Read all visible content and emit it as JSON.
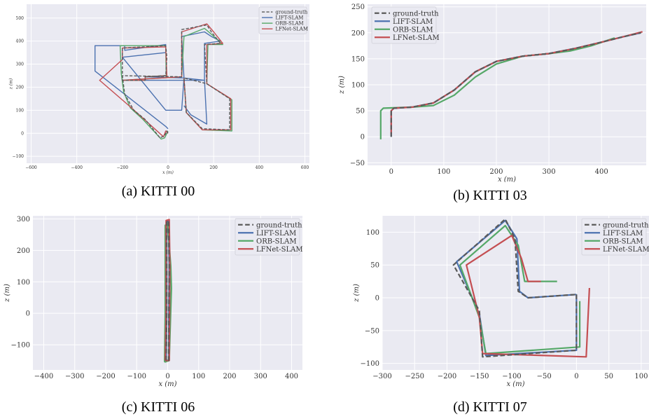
{
  "figure": {
    "captions": [
      "(a) KITTI 00",
      "(b) KITTI 03",
      "(c) KITTI 06",
      "(d) KITTI 07"
    ]
  },
  "colors": {
    "plot_bg": "#eaeaf2",
    "grid": "#ffffff",
    "ground-truth": "#5a5a5a",
    "LIFT-SLAM": "#4c72b0",
    "ORB-SLAM": "#55a868",
    "LFNet-SLAM": "#c44e52"
  },
  "chart_data": [
    {
      "type": "line",
      "caption": "(a) KITTI 00",
      "xlabel": "x (m)",
      "ylabel": "z (m)",
      "xlim": [
        -620,
        620
      ],
      "ylim": [
        -130,
        560
      ],
      "xticks": [
        -600,
        -400,
        -200,
        0,
        200,
        400,
        600
      ],
      "yticks": [
        -100,
        0,
        100,
        200,
        300,
        400,
        500
      ],
      "grid": true,
      "legend": "top-right",
      "series": [
        {
          "name": "ground-truth",
          "points": [
            [
              0,
              0
            ],
            [
              -5,
              10
            ],
            [
              -15,
              -10
            ],
            [
              -35,
              -20
            ],
            [
              -100,
              60
            ],
            [
              -150,
              100
            ],
            [
              -190,
              170
            ],
            [
              -200,
              250
            ],
            [
              -200,
              370
            ],
            [
              -10,
              380
            ],
            [
              -5,
              330
            ],
            [
              -10,
              250
            ],
            [
              -100,
              245
            ],
            [
              -100,
              230
            ],
            [
              -200,
              230
            ],
            [
              -200,
              250
            ],
            [
              60,
              245
            ],
            [
              60,
              450
            ],
            [
              170,
              470
            ],
            [
              190,
              440
            ],
            [
              230,
              390
            ],
            [
              160,
              385
            ],
            [
              170,
              215
            ],
            [
              270,
              150
            ],
            [
              270,
              15
            ],
            [
              150,
              20
            ],
            [
              80,
              90
            ],
            [
              70,
              240
            ],
            [
              170,
              215
            ]
          ]
        },
        {
          "name": "LIFT-SLAM",
          "points": [
            [
              0,
              20
            ],
            [
              -10,
              30
            ],
            [
              -320,
              270
            ],
            [
              -320,
              380
            ],
            [
              -190,
              380
            ],
            [
              -190,
              360
            ],
            [
              -10,
              385
            ],
            [
              -10,
              350
            ],
            [
              -200,
              330
            ],
            [
              -10,
              100
            ],
            [
              60,
              100
            ],
            [
              70,
              240
            ],
            [
              60,
              420
            ],
            [
              160,
              440
            ],
            [
              190,
              420
            ],
            [
              230,
              400
            ],
            [
              160,
              390
            ],
            [
              160,
              230
            ],
            [
              70,
              240
            ],
            [
              -100,
              245
            ],
            [
              -100,
              230
            ],
            [
              160,
              230
            ],
            [
              170,
              40
            ],
            [
              100,
              80
            ],
            [
              70,
              120
            ]
          ]
        },
        {
          "name": "ORB-SLAM",
          "points": [
            [
              0,
              10
            ],
            [
              -15,
              -20
            ],
            [
              -30,
              -25
            ],
            [
              -110,
              60
            ],
            [
              -165,
              110
            ],
            [
              -195,
              180
            ],
            [
              -205,
              260
            ],
            [
              -210,
              380
            ],
            [
              -10,
              380
            ],
            [
              -8,
              250
            ],
            [
              -100,
              245
            ],
            [
              -100,
              230
            ],
            [
              -200,
              230
            ],
            [
              60,
              245
            ],
            [
              70,
              420
            ],
            [
              160,
              455
            ],
            [
              190,
              430
            ],
            [
              240,
              385
            ],
            [
              175,
              385
            ],
            [
              170,
              215
            ],
            [
              280,
              145
            ],
            [
              280,
              10
            ],
            [
              150,
              15
            ],
            [
              80,
              90
            ],
            [
              70,
              240
            ]
          ]
        },
        {
          "name": "LFNet-SLAM",
          "points": [
            [
              0,
              0
            ],
            [
              -10,
              10
            ],
            [
              -20,
              -15
            ],
            [
              -160,
              110
            ],
            [
              -300,
              230
            ],
            [
              -200,
              320
            ],
            [
              -200,
              370
            ],
            [
              -10,
              375
            ],
            [
              -5,
              250
            ],
            [
              -100,
              245
            ],
            [
              -100,
              230
            ],
            [
              -200,
              230
            ],
            [
              60,
              245
            ],
            [
              60,
              440
            ],
            [
              170,
              475
            ],
            [
              200,
              440
            ],
            [
              240,
              390
            ],
            [
              170,
              385
            ],
            [
              170,
              215
            ],
            [
              275,
              150
            ],
            [
              275,
              15
            ],
            [
              150,
              15
            ],
            [
              80,
              90
            ],
            [
              70,
              240
            ]
          ]
        }
      ]
    },
    {
      "type": "line",
      "caption": "(b) KITTI 03",
      "xlabel": "x (m)",
      "ylabel": "z (m)",
      "xlim": [
        -45,
        485
      ],
      "ylim": [
        -55,
        255
      ],
      "xticks": [
        0,
        100,
        200,
        300,
        400
      ],
      "yticks": [
        -50,
        0,
        50,
        100,
        150,
        200,
        250
      ],
      "grid": true,
      "legend": "top-left",
      "series": [
        {
          "name": "ground-truth",
          "points": [
            [
              0,
              0
            ],
            [
              0,
              50
            ],
            [
              5,
              55
            ],
            [
              40,
              57
            ],
            [
              80,
              65
            ],
            [
              120,
              90
            ],
            [
              160,
              125
            ],
            [
              200,
              145
            ],
            [
              250,
              155
            ],
            [
              300,
              160
            ],
            [
              350,
              170
            ],
            [
              400,
              182
            ],
            [
              440,
              192
            ],
            [
              475,
              200
            ]
          ]
        },
        {
          "name": "LIFT-SLAM",
          "points": [
            [
              0,
              0
            ],
            [
              0,
              50
            ],
            [
              5,
              55
            ],
            [
              40,
              57
            ],
            [
              80,
              65
            ],
            [
              120,
              90
            ],
            [
              160,
              125
            ],
            [
              200,
              145
            ],
            [
              250,
              155
            ],
            [
              300,
              160
            ],
            [
              350,
              170
            ],
            [
              400,
              182
            ],
            [
              440,
              192
            ],
            [
              475,
              200
            ]
          ]
        },
        {
          "name": "ORB-SLAM",
          "points": [
            [
              -20,
              -5
            ],
            [
              -20,
              50
            ],
            [
              -15,
              55
            ],
            [
              40,
              57
            ],
            [
              80,
              60
            ],
            [
              120,
              80
            ],
            [
              160,
              115
            ],
            [
              200,
              140
            ],
            [
              250,
              155
            ],
            [
              300,
              160
            ],
            [
              340,
              165
            ],
            [
              380,
              175
            ],
            [
              425,
              190
            ]
          ]
        },
        {
          "name": "LFNet-SLAM",
          "points": [
            [
              0,
              5
            ],
            [
              0,
              50
            ],
            [
              5,
              55
            ],
            [
              40,
              57
            ],
            [
              80,
              65
            ],
            [
              120,
              90
            ],
            [
              160,
              125
            ],
            [
              200,
              145
            ],
            [
              250,
              155
            ],
            [
              300,
              160
            ],
            [
              350,
              170
            ],
            [
              400,
              182
            ],
            [
              440,
              192
            ],
            [
              478,
              202
            ]
          ]
        }
      ]
    },
    {
      "type": "line",
      "caption": "(c) KITTI 06",
      "xlabel": "x (m)",
      "ylabel": "z (m)",
      "xlim": [
        -435,
        435
      ],
      "ylim": [
        -180,
        310
      ],
      "xticks": [
        -400,
        -300,
        -200,
        -100,
        0,
        100,
        200,
        300,
        400
      ],
      "yticks": [
        -100,
        0,
        100,
        200,
        300
      ],
      "grid": true,
      "legend": "top-right",
      "series": [
        {
          "name": "ground-truth",
          "points": [
            [
              -5,
              -150
            ],
            [
              -3,
              0
            ],
            [
              -3,
              290
            ],
            [
              3,
              295
            ],
            [
              5,
              150
            ],
            [
              3,
              -150
            ],
            [
              -5,
              -150
            ]
          ]
        },
        {
          "name": "LIFT-SLAM",
          "points": [
            [
              -5,
              -150
            ],
            [
              -3,
              0
            ],
            [
              -3,
              290
            ],
            [
              3,
              295
            ],
            [
              5,
              150
            ],
            [
              3,
              -150
            ],
            [
              -5,
              -150
            ]
          ]
        },
        {
          "name": "ORB-SLAM",
          "points": [
            [
              -10,
              -155
            ],
            [
              -8,
              0
            ],
            [
              -8,
              280
            ],
            [
              0,
              285
            ],
            [
              10,
              150
            ],
            [
              12,
              80
            ],
            [
              5,
              -150
            ],
            [
              -10,
              -155
            ]
          ]
        },
        {
          "name": "LFNet-SLAM",
          "points": [
            [
              -8,
              -150
            ],
            [
              -5,
              0
            ],
            [
              -5,
              295
            ],
            [
              5,
              298
            ],
            [
              7,
              150
            ],
            [
              5,
              -150
            ],
            [
              -8,
              -150
            ]
          ]
        }
      ]
    },
    {
      "type": "line",
      "caption": "(d) KITTI 07",
      "xlabel": "x (m)",
      "ylabel": "z (m)",
      "xlim": [
        -300,
        112
      ],
      "ylim": [
        -110,
        125
      ],
      "xticks": [
        -300,
        -250,
        -200,
        -150,
        -100,
        -50,
        0,
        50,
        100
      ],
      "yticks": [
        -100,
        -50,
        0,
        50,
        100
      ],
      "grid": true,
      "legend": "top-right",
      "series": [
        {
          "name": "ground-truth",
          "points": [
            [
              0,
              5
            ],
            [
              0,
              -80
            ],
            [
              -145,
              -90
            ],
            [
              -150,
              -20
            ],
            [
              -190,
              50
            ],
            [
              -110,
              120
            ],
            [
              -95,
              90
            ],
            [
              -90,
              10
            ],
            [
              -75,
              0
            ],
            [
              0,
              5
            ]
          ]
        },
        {
          "name": "LIFT-SLAM",
          "points": [
            [
              0,
              5
            ],
            [
              0,
              -80
            ],
            [
              -140,
              -88
            ],
            [
              -150,
              -25
            ],
            [
              -185,
              55
            ],
            [
              -110,
              118
            ],
            [
              -92,
              90
            ],
            [
              -88,
              10
            ],
            [
              -75,
              0
            ],
            [
              0,
              5
            ]
          ]
        },
        {
          "name": "ORB-SLAM",
          "points": [
            [
              5,
              -5
            ],
            [
              5,
              -75
            ],
            [
              -140,
              -85
            ],
            [
              -150,
              -30
            ],
            [
              -180,
              50
            ],
            [
              -110,
              110
            ],
            [
              -90,
              80
            ],
            [
              -80,
              25
            ],
            [
              -30,
              25
            ]
          ]
        },
        {
          "name": "LFNet-SLAM",
          "points": [
            [
              20,
              15
            ],
            [
              15,
              -90
            ],
            [
              -145,
              -85
            ],
            [
              -150,
              -30
            ],
            [
              -170,
              50
            ],
            [
              -100,
              95
            ],
            [
              -85,
              60
            ],
            [
              -75,
              25
            ],
            [
              -55,
              25
            ]
          ]
        }
      ]
    }
  ]
}
